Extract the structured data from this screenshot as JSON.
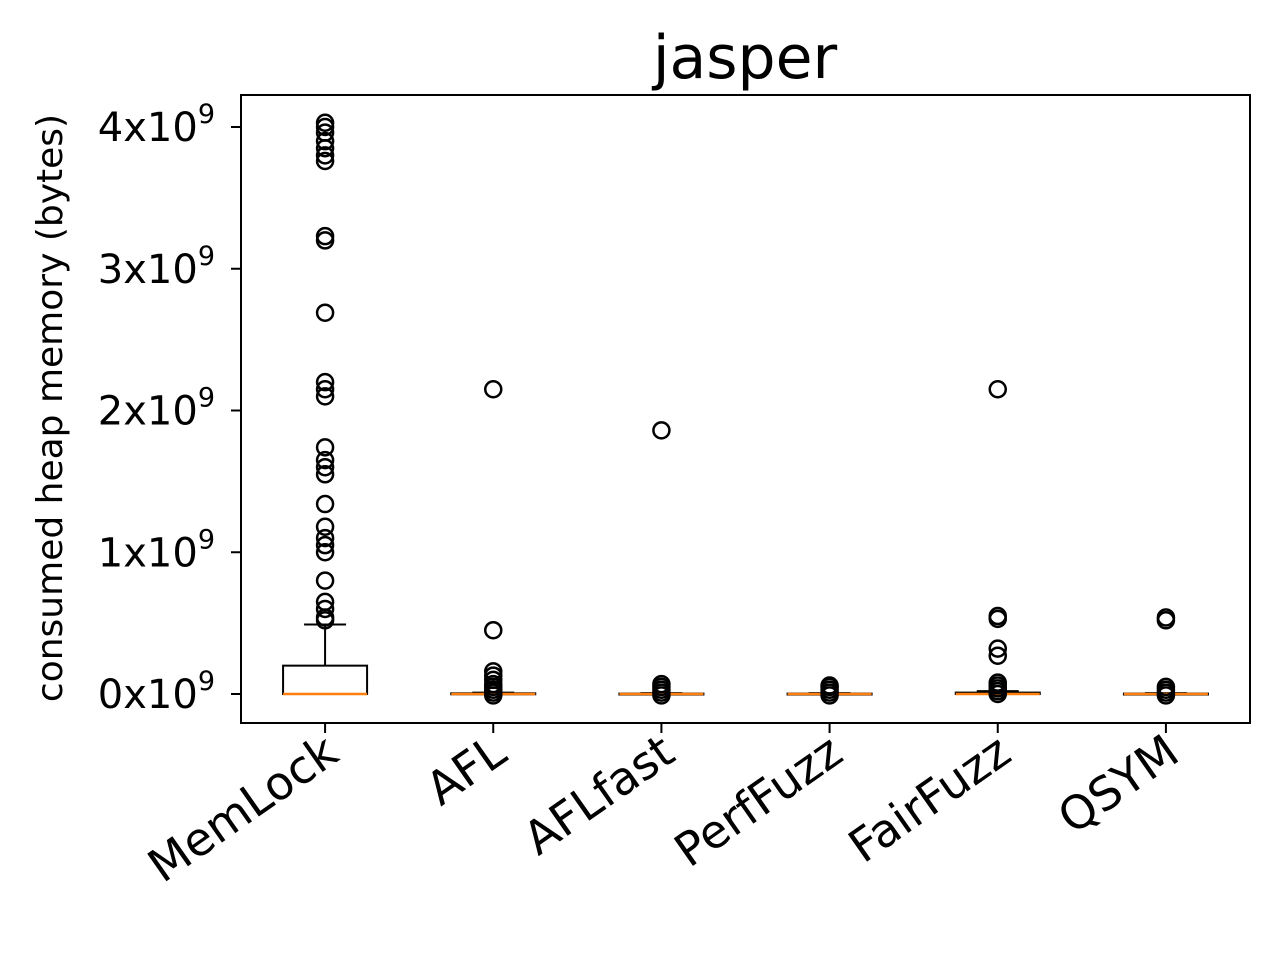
{
  "chart_data": {
    "type": "box",
    "title": "jasper",
    "xlabel": "",
    "ylabel": "consumed heap memory (bytes)",
    "y_unit_exponent": "9",
    "ylim": [
      -0.2,
      4.22
    ],
    "yticks": [
      {
        "value": 0,
        "base": "0x10"
      },
      {
        "value": 1,
        "base": "1x10"
      },
      {
        "value": 2,
        "base": "2x10"
      },
      {
        "value": 3,
        "base": "3x10"
      },
      {
        "value": 4,
        "base": "4x10"
      }
    ],
    "value_scale": "x10^9 bytes",
    "categories": [
      "MemLock",
      "AFL",
      "AFLfast",
      "PerfFuzz",
      "FairFuzz",
      "QSYM"
    ],
    "boxes": [
      {
        "name": "MemLock",
        "whisker_low": 0.0,
        "q1": 0.0,
        "median": 0.0,
        "q3": 0.2,
        "whisker_high": 0.49,
        "outliers": [
          0.52,
          0.54,
          0.6,
          0.65,
          0.8,
          1.0,
          1.05,
          1.1,
          1.18,
          1.34,
          1.55,
          1.6,
          1.65,
          1.74,
          2.1,
          2.15,
          2.2,
          2.69,
          3.2,
          3.23,
          3.76,
          3.8,
          3.85,
          3.9,
          3.96,
          4.0,
          4.03
        ]
      },
      {
        "name": "AFL",
        "whisker_low": 0.0,
        "q1": 0.0,
        "median": 0.0,
        "q3": 0.005,
        "whisker_high": 0.01,
        "outliers": [
          -0.01,
          0.01,
          0.03,
          0.05,
          0.07,
          0.1,
          0.13,
          0.16,
          0.45,
          2.15
        ]
      },
      {
        "name": "AFLfast",
        "whisker_low": 0.0,
        "q1": 0.0,
        "median": 0.0,
        "q3": 0.003,
        "whisker_high": 0.006,
        "outliers": [
          -0.01,
          0.01,
          0.03,
          0.05,
          0.07,
          1.86
        ]
      },
      {
        "name": "PerfFuzz",
        "whisker_low": 0.0,
        "q1": 0.0,
        "median": 0.0,
        "q3": 0.003,
        "whisker_high": 0.006,
        "outliers": [
          -0.01,
          0.01,
          0.03,
          0.05,
          0.06
        ]
      },
      {
        "name": "FairFuzz",
        "whisker_low": 0.0,
        "q1": 0.0,
        "median": 0.0,
        "q3": 0.01,
        "whisker_high": 0.02,
        "outliers": [
          0.0,
          0.02,
          0.04,
          0.06,
          0.08,
          0.27,
          0.32,
          0.53,
          0.55,
          2.15
        ]
      },
      {
        "name": "QSYM",
        "whisker_low": 0.0,
        "q1": 0.0,
        "median": 0.0,
        "q3": 0.003,
        "whisker_high": 0.006,
        "outliers": [
          -0.01,
          0.01,
          0.03,
          0.05,
          0.52,
          0.54
        ]
      }
    ],
    "colors": {
      "box": "#000000",
      "median": "#ff7f0e",
      "outlier": "#000000"
    },
    "grid": false,
    "legend": "none"
  }
}
